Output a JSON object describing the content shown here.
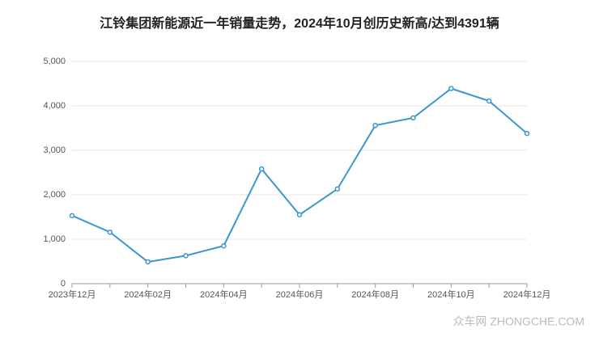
{
  "chart_data": {
    "type": "line",
    "title": "江铃集团新能源近一年销量走势，2024年10月创历史新高/达到4391辆",
    "categories": [
      "2023年12月",
      null,
      "2024年02月",
      null,
      "2024年04月",
      null,
      "2024年06月",
      null,
      "2024年08月",
      null,
      "2024年10月",
      null,
      "2024年12月"
    ],
    "values": [
      1530,
      1160,
      490,
      630,
      850,
      2580,
      1550,
      2130,
      3560,
      3730,
      4391,
      4110,
      3380
    ],
    "color": "#3d96cc",
    "ylim": [
      0,
      5000
    ],
    "yticks": [
      0,
      {
        "value": 1000,
        "label": "1,000"
      },
      {
        "value": 2000,
        "label": "2,000"
      },
      {
        "value": 3000,
        "label": "3,000"
      },
      {
        "value": 4000,
        "label": "4,000"
      },
      {
        "value": 5000,
        "label": "5,000"
      }
    ],
    "grid": true,
    "watermark": "众车网 ZHONGCHE.COM"
  }
}
